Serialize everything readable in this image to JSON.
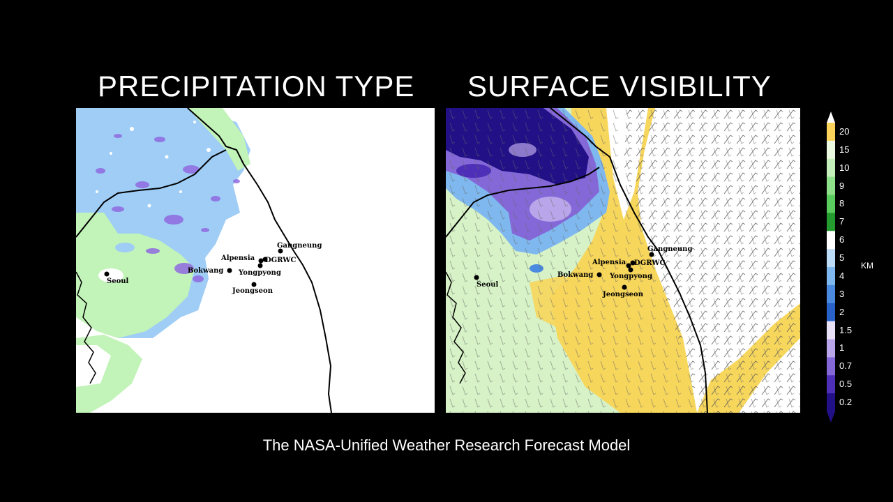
{
  "panels": {
    "left_title": "PRECIPITATION TYPE",
    "right_title": "SURFACE VISIBILITY"
  },
  "cities": [
    {
      "name": "Gangneung"
    },
    {
      "name": "Alpensia"
    },
    {
      "name": "DGRWC"
    },
    {
      "name": "Bokwang"
    },
    {
      "name": "Yongpyong"
    },
    {
      "name": "Seoul"
    },
    {
      "name": "Jeongseon"
    }
  ],
  "legend": {
    "units": "KM",
    "levels": [
      "20",
      "15",
      "10",
      "9",
      "8",
      "7",
      "6",
      "5",
      "4",
      "3",
      "2",
      "1.5",
      "1",
      "0.7",
      "0.5",
      "0.2"
    ],
    "colors": [
      "#fbd25a",
      "#ecf9e1",
      "#c4efba",
      "#8fe08a",
      "#5acc5d",
      "#249b2e",
      "#ffffff",
      "#bcdcf7",
      "#7fb8ee",
      "#4a8be0",
      "#2861c8",
      "#e8e0f7",
      "#b9a6ea",
      "#8468d8",
      "#4d2fb8",
      "#221087"
    ]
  },
  "colors": {
    "precip_blue": "#9fcdf6",
    "precip_green": "#c2f3b8",
    "precip_purple": "#8f6ae0",
    "vis_yellow": "#f7d65c",
    "vis_green": "#d6f2c6",
    "vis_navy": "#1d1088"
  },
  "caption": "The NASA-Unified Weather Research Forecast Model"
}
